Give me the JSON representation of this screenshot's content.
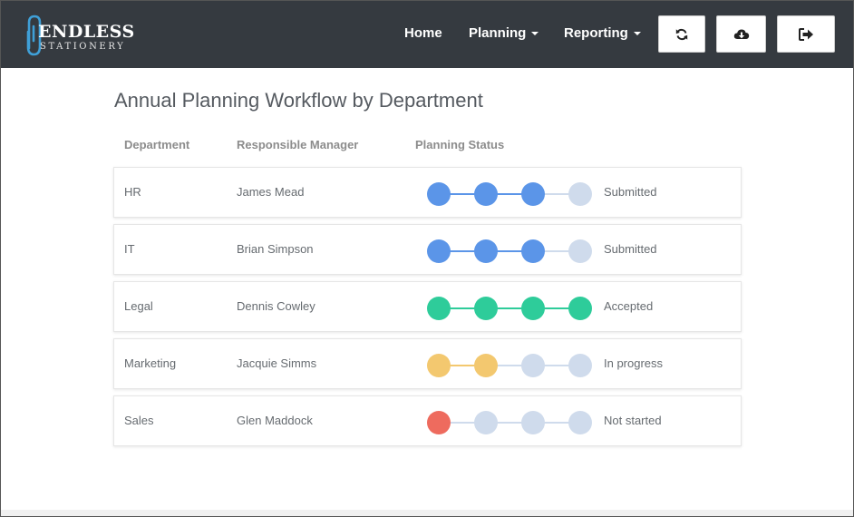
{
  "brand": {
    "line1": "ENDLESS",
    "line2": "STATIONERY",
    "accent_color": "#3fa0d8"
  },
  "nav": {
    "home": "Home",
    "planning": "Planning",
    "reporting": "Reporting",
    "buttons": [
      {
        "icon": "refresh-icon"
      },
      {
        "icon": "cloud-download-icon"
      },
      {
        "icon": "sign-out-icon"
      }
    ]
  },
  "page": {
    "title": "Annual Planning Workflow by Department"
  },
  "table": {
    "headers": [
      "Department",
      "Responsible Manager",
      "Planning Status"
    ],
    "rows": [
      {
        "department": "HR",
        "manager": "James Mead",
        "status": "Submitted",
        "completed": 3,
        "total": 4,
        "color": "#5b95e8"
      },
      {
        "department": "IT",
        "manager": "Brian Simpson",
        "status": "Submitted",
        "completed": 3,
        "total": 4,
        "color": "#5b95e8"
      },
      {
        "department": "Legal",
        "manager": "Dennis Cowley",
        "status": "Accepted",
        "completed": 4,
        "total": 4,
        "color": "#2ecc9a"
      },
      {
        "department": "Marketing",
        "manager": "Jacquie Simms",
        "status": "In progress",
        "completed": 2,
        "total": 4,
        "color": "#f3c86f"
      },
      {
        "department": "Sales",
        "manager": "Glen Maddock",
        "status": "Not started",
        "completed": 1,
        "total": 4,
        "color": "#ee6b5e"
      }
    ],
    "inactive_color": "#cfdbec"
  }
}
